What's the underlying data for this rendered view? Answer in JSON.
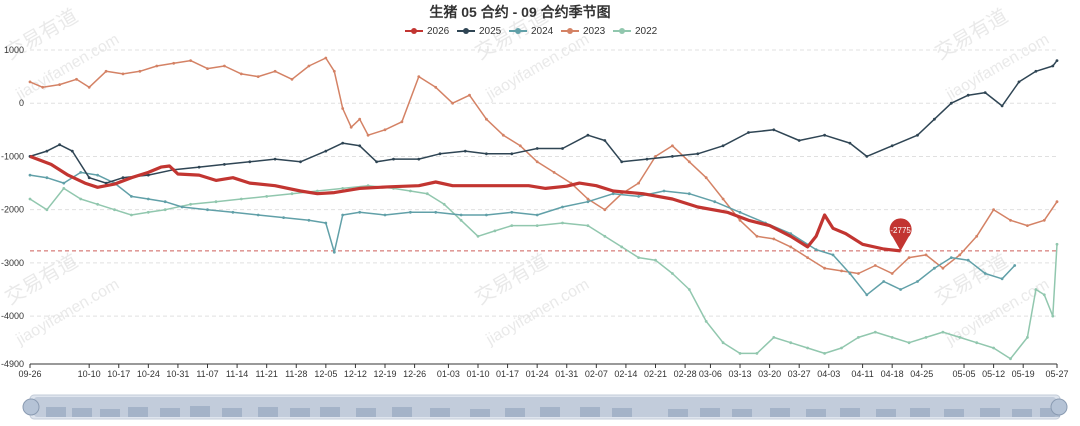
{
  "chart_data": {
    "type": "line",
    "title": "生猪 05 合约 - 09 合约季节图",
    "xlabel": "",
    "ylabel": "",
    "ylim": [
      -4900,
      1000
    ],
    "yticks": [
      1000,
      0,
      -1000,
      -2000,
      -3000,
      -4000,
      -4900
    ],
    "x_range_days": [
      0,
      243
    ],
    "categories": [
      "09-26",
      "10-10",
      "10-17",
      "10-24",
      "10-31",
      "11-07",
      "11-14",
      "11-21",
      "11-28",
      "12-05",
      "12-12",
      "12-19",
      "12-26",
      "01-03",
      "01-10",
      "01-17",
      "01-24",
      "01-31",
      "02-07",
      "02-14",
      "02-21",
      "02-28",
      "03-06",
      "03-13",
      "03-20",
      "03-27",
      "04-03",
      "04-11",
      "04-18",
      "04-25",
      "05-05",
      "05-12",
      "05-19",
      "05-27"
    ],
    "category_days": [
      0,
      14,
      21,
      28,
      35,
      42,
      49,
      56,
      63,
      70,
      77,
      84,
      91,
      99,
      106,
      113,
      120,
      127,
      134,
      141,
      148,
      155,
      161,
      168,
      175,
      182,
      189,
      197,
      204,
      211,
      221,
      228,
      235,
      243
    ],
    "reference_line": {
      "value": -2775,
      "label": "-2775",
      "color": "#c23531"
    },
    "series": [
      {
        "name": "2026",
        "color": "#c23531",
        "width": 3.2,
        "points": [
          [
            0,
            -1000
          ],
          [
            5,
            -1150
          ],
          [
            9,
            -1350
          ],
          [
            13,
            -1500
          ],
          [
            16,
            -1580
          ],
          [
            20,
            -1520
          ],
          [
            24,
            -1400
          ],
          [
            28,
            -1300
          ],
          [
            31,
            -1200
          ],
          [
            33,
            -1180
          ],
          [
            35,
            -1330
          ],
          [
            40,
            -1350
          ],
          [
            44,
            -1450
          ],
          [
            48,
            -1400
          ],
          [
            52,
            -1500
          ],
          [
            58,
            -1550
          ],
          [
            64,
            -1650
          ],
          [
            68,
            -1700
          ],
          [
            72,
            -1680
          ],
          [
            78,
            -1600
          ],
          [
            85,
            -1570
          ],
          [
            92,
            -1550
          ],
          [
            96,
            -1480
          ],
          [
            100,
            -1550
          ],
          [
            106,
            -1550
          ],
          [
            112,
            -1550
          ],
          [
            118,
            -1550
          ],
          [
            122,
            -1600
          ],
          [
            127,
            -1560
          ],
          [
            130,
            -1500
          ],
          [
            134,
            -1550
          ],
          [
            138,
            -1650
          ],
          [
            145,
            -1700
          ],
          [
            152,
            -1800
          ],
          [
            158,
            -1950
          ],
          [
            165,
            -2050
          ],
          [
            170,
            -2200
          ],
          [
            175,
            -2300
          ],
          [
            180,
            -2500
          ],
          [
            184,
            -2700
          ],
          [
            186,
            -2500
          ],
          [
            188,
            -2100
          ],
          [
            190,
            -2350
          ],
          [
            193,
            -2450
          ],
          [
            197,
            -2650
          ],
          [
            202,
            -2740
          ],
          [
            206,
            -2775
          ]
        ]
      },
      {
        "name": "2025",
        "color": "#2f4554",
        "width": 1.5,
        "points": [
          [
            0,
            -1000
          ],
          [
            4,
            -900
          ],
          [
            7,
            -780
          ],
          [
            10,
            -900
          ],
          [
            14,
            -1400
          ],
          [
            18,
            -1500
          ],
          [
            22,
            -1400
          ],
          [
            28,
            -1350
          ],
          [
            34,
            -1250
          ],
          [
            40,
            -1200
          ],
          [
            46,
            -1150
          ],
          [
            52,
            -1100
          ],
          [
            58,
            -1050
          ],
          [
            64,
            -1100
          ],
          [
            70,
            -900
          ],
          [
            74,
            -750
          ],
          [
            78,
            -800
          ],
          [
            82,
            -1100
          ],
          [
            86,
            -1050
          ],
          [
            92,
            -1050
          ],
          [
            97,
            -950
          ],
          [
            103,
            -900
          ],
          [
            108,
            -950
          ],
          [
            114,
            -950
          ],
          [
            120,
            -850
          ],
          [
            126,
            -850
          ],
          [
            132,
            -600
          ],
          [
            136,
            -700
          ],
          [
            140,
            -1100
          ],
          [
            146,
            -1050
          ],
          [
            152,
            -1000
          ],
          [
            158,
            -950
          ],
          [
            164,
            -800
          ],
          [
            170,
            -550
          ],
          [
            176,
            -500
          ],
          [
            182,
            -700
          ],
          [
            188,
            -600
          ],
          [
            194,
            -750
          ],
          [
            198,
            -1000
          ],
          [
            204,
            -800
          ],
          [
            210,
            -600
          ],
          [
            214,
            -300
          ],
          [
            218,
            0
          ],
          [
            222,
            150
          ],
          [
            226,
            200
          ],
          [
            230,
            -50
          ],
          [
            234,
            400
          ],
          [
            238,
            600
          ],
          [
            242,
            700
          ],
          [
            243,
            800
          ]
        ]
      },
      {
        "name": "2024",
        "color": "#61a0a8",
        "width": 1.5,
        "points": [
          [
            0,
            -1350
          ],
          [
            4,
            -1400
          ],
          [
            8,
            -1500
          ],
          [
            12,
            -1300
          ],
          [
            16,
            -1350
          ],
          [
            20,
            -1500
          ],
          [
            24,
            -1750
          ],
          [
            28,
            -1800
          ],
          [
            32,
            -1850
          ],
          [
            36,
            -1950
          ],
          [
            42,
            -2000
          ],
          [
            48,
            -2050
          ],
          [
            54,
            -2100
          ],
          [
            60,
            -2150
          ],
          [
            66,
            -2200
          ],
          [
            70,
            -2250
          ],
          [
            72,
            -2800
          ],
          [
            74,
            -2100
          ],
          [
            78,
            -2050
          ],
          [
            84,
            -2100
          ],
          [
            90,
            -2050
          ],
          [
            96,
            -2050
          ],
          [
            102,
            -2100
          ],
          [
            108,
            -2100
          ],
          [
            114,
            -2050
          ],
          [
            120,
            -2100
          ],
          [
            126,
            -1950
          ],
          [
            132,
            -1850
          ],
          [
            138,
            -1700
          ],
          [
            144,
            -1750
          ],
          [
            150,
            -1650
          ],
          [
            156,
            -1700
          ],
          [
            162,
            -1850
          ],
          [
            168,
            -2050
          ],
          [
            174,
            -2250
          ],
          [
            180,
            -2450
          ],
          [
            186,
            -2750
          ],
          [
            190,
            -2850
          ],
          [
            194,
            -3200
          ],
          [
            198,
            -3600
          ],
          [
            202,
            -3350
          ],
          [
            206,
            -3500
          ],
          [
            210,
            -3350
          ],
          [
            214,
            -3100
          ],
          [
            218,
            -2900
          ],
          [
            222,
            -2950
          ],
          [
            226,
            -3200
          ],
          [
            230,
            -3300
          ],
          [
            233,
            -3050
          ]
        ]
      },
      {
        "name": "2023",
        "color": "#d48265",
        "width": 1.5,
        "points": [
          [
            0,
            400
          ],
          [
            3,
            300
          ],
          [
            7,
            350
          ],
          [
            11,
            450
          ],
          [
            14,
            300
          ],
          [
            18,
            600
          ],
          [
            22,
            550
          ],
          [
            26,
            600
          ],
          [
            30,
            700
          ],
          [
            34,
            750
          ],
          [
            38,
            800
          ],
          [
            42,
            650
          ],
          [
            46,
            700
          ],
          [
            50,
            550
          ],
          [
            54,
            500
          ],
          [
            58,
            600
          ],
          [
            62,
            450
          ],
          [
            66,
            700
          ],
          [
            70,
            850
          ],
          [
            72,
            600
          ],
          [
            74,
            -100
          ],
          [
            76,
            -450
          ],
          [
            78,
            -300
          ],
          [
            80,
            -600
          ],
          [
            84,
            -500
          ],
          [
            88,
            -350
          ],
          [
            92,
            500
          ],
          [
            96,
            300
          ],
          [
            100,
            0
          ],
          [
            104,
            150
          ],
          [
            108,
            -300
          ],
          [
            112,
            -600
          ],
          [
            116,
            -800
          ],
          [
            120,
            -1100
          ],
          [
            124,
            -1300
          ],
          [
            128,
            -1500
          ],
          [
            132,
            -1800
          ],
          [
            136,
            -2000
          ],
          [
            140,
            -1700
          ],
          [
            144,
            -1500
          ],
          [
            148,
            -1000
          ],
          [
            152,
            -800
          ],
          [
            156,
            -1100
          ],
          [
            160,
            -1400
          ],
          [
            164,
            -1800
          ],
          [
            168,
            -2200
          ],
          [
            172,
            -2500
          ],
          [
            176,
            -2550
          ],
          [
            180,
            -2700
          ],
          [
            184,
            -2900
          ],
          [
            188,
            -3100
          ],
          [
            192,
            -3150
          ],
          [
            196,
            -3200
          ],
          [
            200,
            -3050
          ],
          [
            204,
            -3200
          ],
          [
            208,
            -2900
          ],
          [
            212,
            -2850
          ],
          [
            216,
            -3100
          ],
          [
            220,
            -2850
          ],
          [
            224,
            -2500
          ],
          [
            228,
            -2000
          ],
          [
            232,
            -2200
          ],
          [
            236,
            -2300
          ],
          [
            240,
            -2200
          ],
          [
            243,
            -1850
          ]
        ]
      },
      {
        "name": "2022",
        "color": "#91c7ae",
        "width": 1.5,
        "points": [
          [
            0,
            -1800
          ],
          [
            4,
            -2000
          ],
          [
            8,
            -1600
          ],
          [
            12,
            -1800
          ],
          [
            16,
            -1900
          ],
          [
            20,
            -2000
          ],
          [
            24,
            -2100
          ],
          [
            28,
            -2050
          ],
          [
            32,
            -2000
          ],
          [
            38,
            -1900
          ],
          [
            44,
            -1850
          ],
          [
            50,
            -1800
          ],
          [
            56,
            -1750
          ],
          [
            62,
            -1700
          ],
          [
            68,
            -1650
          ],
          [
            74,
            -1600
          ],
          [
            80,
            -1550
          ],
          [
            86,
            -1600
          ],
          [
            90,
            -1650
          ],
          [
            94,
            -1700
          ],
          [
            98,
            -1900
          ],
          [
            102,
            -2200
          ],
          [
            106,
            -2500
          ],
          [
            110,
            -2400
          ],
          [
            114,
            -2300
          ],
          [
            120,
            -2300
          ],
          [
            126,
            -2250
          ],
          [
            132,
            -2300
          ],
          [
            136,
            -2500
          ],
          [
            140,
            -2700
          ],
          [
            144,
            -2900
          ],
          [
            148,
            -2950
          ],
          [
            152,
            -3200
          ],
          [
            156,
            -3500
          ],
          [
            160,
            -4100
          ],
          [
            164,
            -4500
          ],
          [
            168,
            -4700
          ],
          [
            172,
            -4700
          ],
          [
            176,
            -4400
          ],
          [
            180,
            -4500
          ],
          [
            184,
            -4600
          ],
          [
            188,
            -4700
          ],
          [
            192,
            -4600
          ],
          [
            196,
            -4400
          ],
          [
            200,
            -4300
          ],
          [
            204,
            -4400
          ],
          [
            208,
            -4500
          ],
          [
            212,
            -4400
          ],
          [
            216,
            -4300
          ],
          [
            220,
            -4400
          ],
          [
            224,
            -4500
          ],
          [
            228,
            -4600
          ],
          [
            232,
            -4800
          ],
          [
            236,
            -4400
          ],
          [
            238,
            -3500
          ],
          [
            240,
            -3600
          ],
          [
            242,
            -4000
          ],
          [
            243,
            -2650
          ]
        ]
      }
    ]
  },
  "watermarks": [
    "交易有道",
    "jiaoyifamen.com"
  ]
}
